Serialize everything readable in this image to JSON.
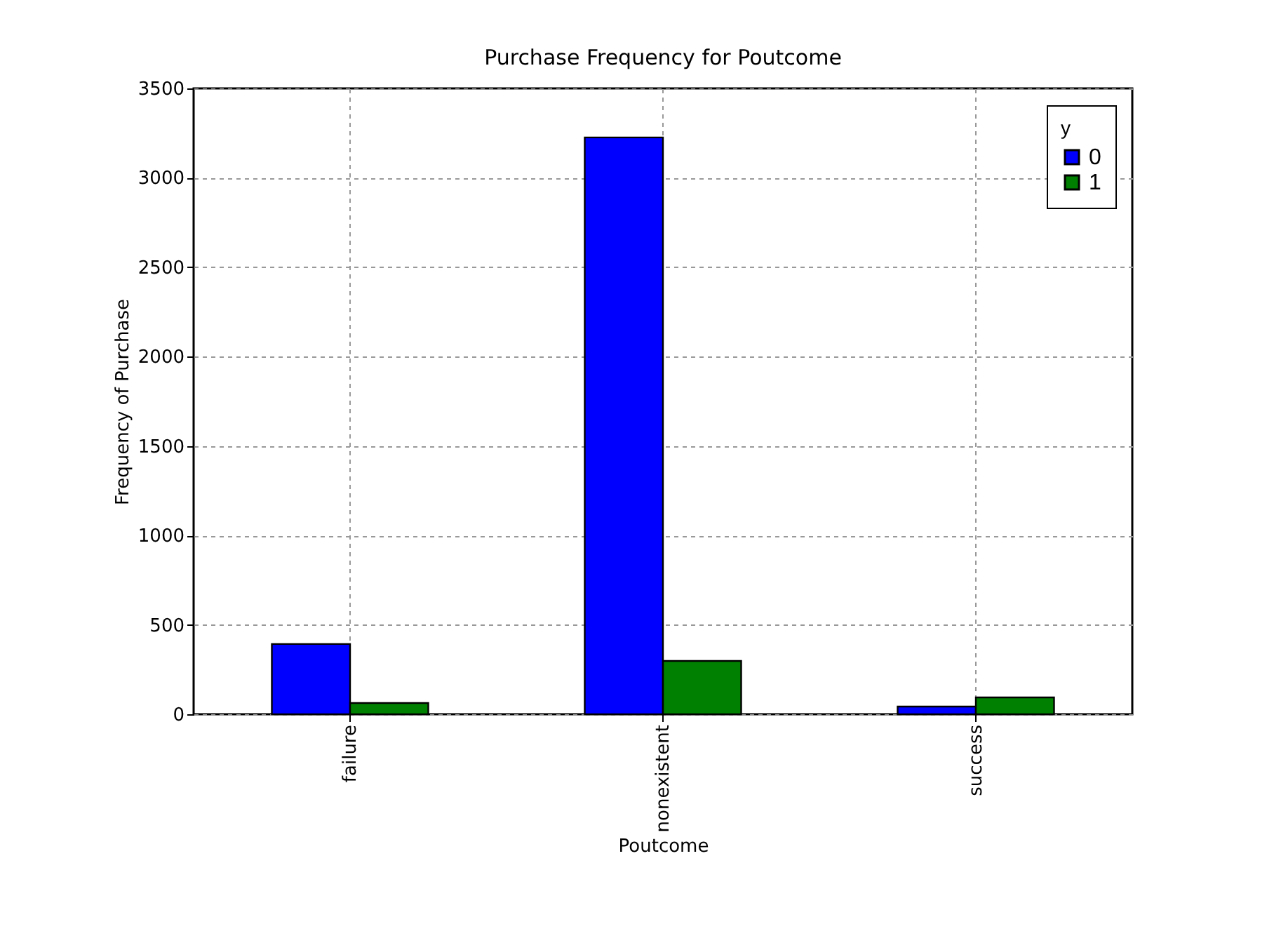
{
  "chart_data": {
    "type": "bar",
    "title": "Purchase Frequency for Poutcome",
    "xlabel": "Poutcome",
    "ylabel": "Frequency of Purchase",
    "legend_title": "y",
    "categories": [
      "failure",
      "nonexistent",
      "success"
    ],
    "series": [
      {
        "name": "0",
        "color": "#0000ff",
        "values": [
          393,
          3226,
          43
        ]
      },
      {
        "name": "1",
        "color": "#008000",
        "values": [
          63,
          298,
          94
        ]
      }
    ],
    "ylim": [
      0,
      3500
    ],
    "yticks": [
      0,
      500,
      1000,
      1500,
      2000,
      2500,
      3000,
      3500
    ],
    "grid": true,
    "legend": "top right"
  }
}
